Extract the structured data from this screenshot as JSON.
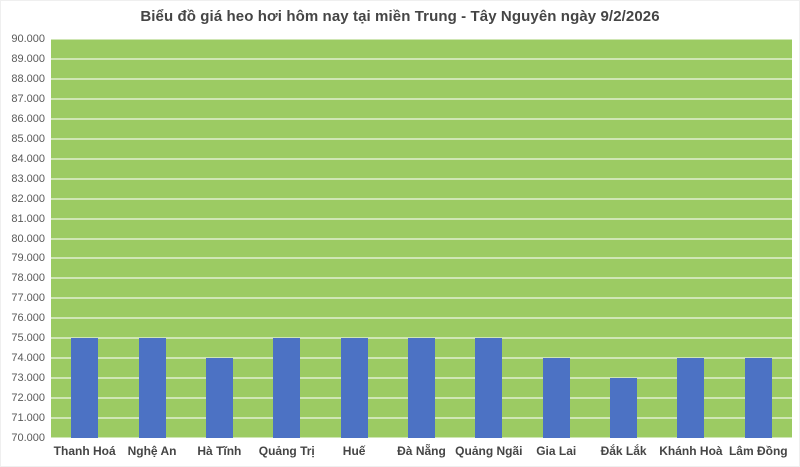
{
  "chart_data": {
    "type": "bar",
    "title": "Biểu đồ giá heo hơi hôm nay tại miền Trung - Tây Nguyên ngày 9/2/2026",
    "categories": [
      "Thanh Hoá",
      "Nghệ An",
      "Hà Tĩnh",
      "Quảng Trị",
      "Huế",
      "Đà Nẵng",
      "Quảng Ngãi",
      "Gia Lai",
      "Đắk Lắk",
      "Khánh Hoà",
      "Lâm Đồng"
    ],
    "values": [
      75000,
      75000,
      74000,
      75000,
      75000,
      75000,
      75000,
      74000,
      73000,
      74000,
      74000
    ],
    "xlabel": "",
    "ylabel": "",
    "ylim": [
      70000,
      90000
    ],
    "ytick_step": 1000,
    "ytick_labels_top_to_bottom": [
      "90.000",
      "89.000",
      "88.000",
      "87.000",
      "86.000",
      "85.000",
      "84.000",
      "83.000",
      "82.000",
      "81.000",
      "80.000",
      "79.000",
      "78.000",
      "77.000",
      "76.000",
      "75.000",
      "74.000",
      "73.000",
      "72.000",
      "71.000",
      "70.000"
    ],
    "grid": true,
    "legend_position": "none",
    "colors": {
      "plot_background": "#9CCB63",
      "bar_fill": "#4C72C4",
      "gridline": "rgba(255,255,255,0.52)",
      "title_text": "#454545",
      "axis_text": "#595959"
    }
  }
}
